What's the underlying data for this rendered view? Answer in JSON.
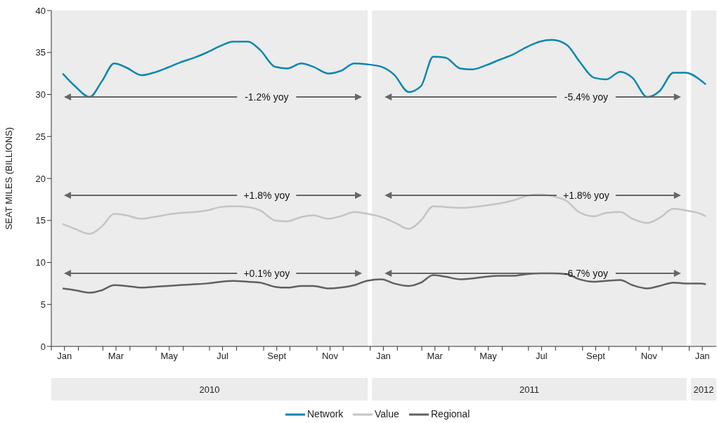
{
  "chart_data": {
    "type": "line",
    "ylabel": "SEAT MILES (BILLIONS)",
    "x": [
      "2010-01-14",
      "2010-01-28",
      "2010-02-14",
      "2010-02-28",
      "2010-03-14",
      "2010-03-28",
      "2010-04-14",
      "2010-04-28",
      "2010-05-14",
      "2010-05-28",
      "2010-06-14",
      "2010-06-28",
      "2010-07-14",
      "2010-07-28",
      "2010-08-14",
      "2010-08-28",
      "2010-09-14",
      "2010-09-28",
      "2010-10-14",
      "2010-10-28",
      "2010-11-14",
      "2010-11-28",
      "2010-12-14",
      "2010-12-28",
      "2011-01-14",
      "2011-01-28",
      "2011-02-14",
      "2011-02-28",
      "2011-03-14",
      "2011-03-28",
      "2011-04-14",
      "2011-04-28",
      "2011-05-14",
      "2011-05-28",
      "2011-06-14",
      "2011-06-28",
      "2011-07-14",
      "2011-07-28",
      "2011-08-14",
      "2011-08-28",
      "2011-09-14",
      "2011-09-28",
      "2011-10-14",
      "2011-10-28",
      "2011-11-14",
      "2011-11-28",
      "2011-12-14",
      "2011-12-28",
      "2012-01-14",
      "2012-01-20"
    ],
    "series": [
      {
        "name": "Network",
        "color": "#0a86ad",
        "values": [
          32.5,
          31.0,
          29.7,
          31.6,
          33.7,
          33.2,
          32.3,
          32.6,
          33.2,
          33.8,
          34.4,
          35.0,
          35.8,
          36.3,
          36.3,
          35.3,
          33.3,
          33.1,
          33.7,
          33.3,
          32.5,
          32.8,
          33.7,
          33.6,
          33.3,
          32.4,
          30.3,
          31.0,
          34.5,
          34.4,
          33.1,
          33.0,
          33.5,
          34.1,
          34.8,
          35.6,
          36.3,
          36.5,
          35.9,
          34.0,
          32.0,
          31.8,
          32.7,
          32.0,
          29.7,
          30.4,
          32.6,
          32.6,
          31.7,
          31.2
        ]
      },
      {
        "name": "Value",
        "color": "#c3c4c4",
        "values": [
          14.6,
          14.0,
          13.4,
          14.3,
          15.8,
          15.6,
          15.2,
          15.4,
          15.7,
          15.9,
          16.0,
          16.2,
          16.6,
          16.7,
          16.6,
          16.2,
          15.0,
          14.9,
          15.4,
          15.6,
          15.2,
          15.5,
          16.0,
          15.8,
          15.4,
          14.8,
          14.0,
          15.0,
          16.7,
          16.6,
          16.5,
          16.6,
          16.8,
          17.0,
          17.4,
          17.9,
          18.1,
          17.9,
          17.3,
          16.0,
          15.5,
          15.9,
          16.0,
          15.2,
          14.7,
          15.3,
          16.4,
          16.2,
          15.8,
          15.5
        ]
      },
      {
        "name": "Regional",
        "color": "#5f6062",
        "values": [
          6.9,
          6.7,
          6.4,
          6.7,
          7.3,
          7.2,
          7.0,
          7.1,
          7.2,
          7.3,
          7.4,
          7.5,
          7.7,
          7.8,
          7.7,
          7.6,
          7.1,
          7.0,
          7.2,
          7.2,
          6.9,
          7.0,
          7.3,
          7.8,
          8.0,
          7.5,
          7.2,
          7.6,
          8.5,
          8.3,
          8.0,
          8.1,
          8.3,
          8.4,
          8.4,
          8.6,
          8.7,
          8.7,
          8.6,
          8.0,
          7.7,
          7.8,
          7.9,
          7.3,
          6.9,
          7.2,
          7.6,
          7.5,
          7.5,
          7.4
        ]
      }
    ],
    "xlim": [
      "2010-01-01",
      "2012-02-01"
    ],
    "xticks": [
      {
        "value": "2010-01-16",
        "label": "Jan"
      },
      {
        "value": "2010-03-16",
        "label": "Mar"
      },
      {
        "value": "2010-05-16",
        "label": "May"
      },
      {
        "value": "2010-07-16",
        "label": "Jul"
      },
      {
        "value": "2010-09-16",
        "label": "Sept"
      },
      {
        "value": "2010-11-16",
        "label": "Nov"
      },
      {
        "value": "2011-01-16",
        "label": "Jan"
      },
      {
        "value": "2011-03-16",
        "label": "Mar"
      },
      {
        "value": "2011-05-16",
        "label": "May"
      },
      {
        "value": "2011-07-16",
        "label": "Jul"
      },
      {
        "value": "2011-09-16",
        "label": "Sept"
      },
      {
        "value": "2011-11-16",
        "label": "Nov"
      },
      {
        "value": "2012-01-16",
        "label": "Jan"
      },
      {
        "value": "2010-01-01",
        "label": null
      },
      {
        "value": "2010-02-01",
        "label": null
      },
      {
        "value": "2010-03-01",
        "label": null
      },
      {
        "value": "2010-04-01",
        "label": null
      },
      {
        "value": "2010-05-01",
        "label": null
      },
      {
        "value": "2010-06-01",
        "label": null
      },
      {
        "value": "2010-07-01",
        "label": null
      },
      {
        "value": "2010-08-01",
        "label": null
      },
      {
        "value": "2010-09-01",
        "label": null
      },
      {
        "value": "2010-10-01",
        "label": null
      },
      {
        "value": "2010-11-01",
        "label": null
      },
      {
        "value": "2010-12-01",
        "label": null
      },
      {
        "value": "2011-01-01",
        "label": null
      },
      {
        "value": "2011-02-01",
        "label": null
      },
      {
        "value": "2011-03-01",
        "label": null
      },
      {
        "value": "2011-04-01",
        "label": null
      },
      {
        "value": "2011-05-01",
        "label": null
      },
      {
        "value": "2011-06-01",
        "label": null
      },
      {
        "value": "2011-07-01",
        "label": null
      },
      {
        "value": "2011-08-01",
        "label": null
      },
      {
        "value": "2011-09-01",
        "label": null
      },
      {
        "value": "2011-10-01",
        "label": null
      },
      {
        "value": "2011-11-01",
        "label": null
      },
      {
        "value": "2011-12-01",
        "label": null
      },
      {
        "value": "2012-01-01",
        "label": null
      }
    ],
    "ylim": [
      0,
      40
    ],
    "yticks": [
      0,
      5,
      10,
      15,
      20,
      25,
      30,
      35,
      40
    ],
    "grid": false,
    "legend": "bottom",
    "bands": [
      {
        "axis": "x",
        "from": "2010-01-01",
        "to": "2010-12-29",
        "color": "#ebeceb"
      },
      {
        "axis": "x",
        "from": "2011-01-03",
        "to": "2011-12-29",
        "color": "#ebeceb"
      },
      {
        "axis": "x",
        "from": "2012-01-03",
        "to": "2012-02-01",
        "color": "#ebeceb"
      }
    ],
    "annotations": [
      "-1.2% yoy",
      "+1.8% yoy",
      "+0.1% yoy",
      "-5.4% yoy",
      "+1.8% yoy",
      "-6.7% yoy",
      "2010",
      "2011",
      "2012"
    ]
  }
}
